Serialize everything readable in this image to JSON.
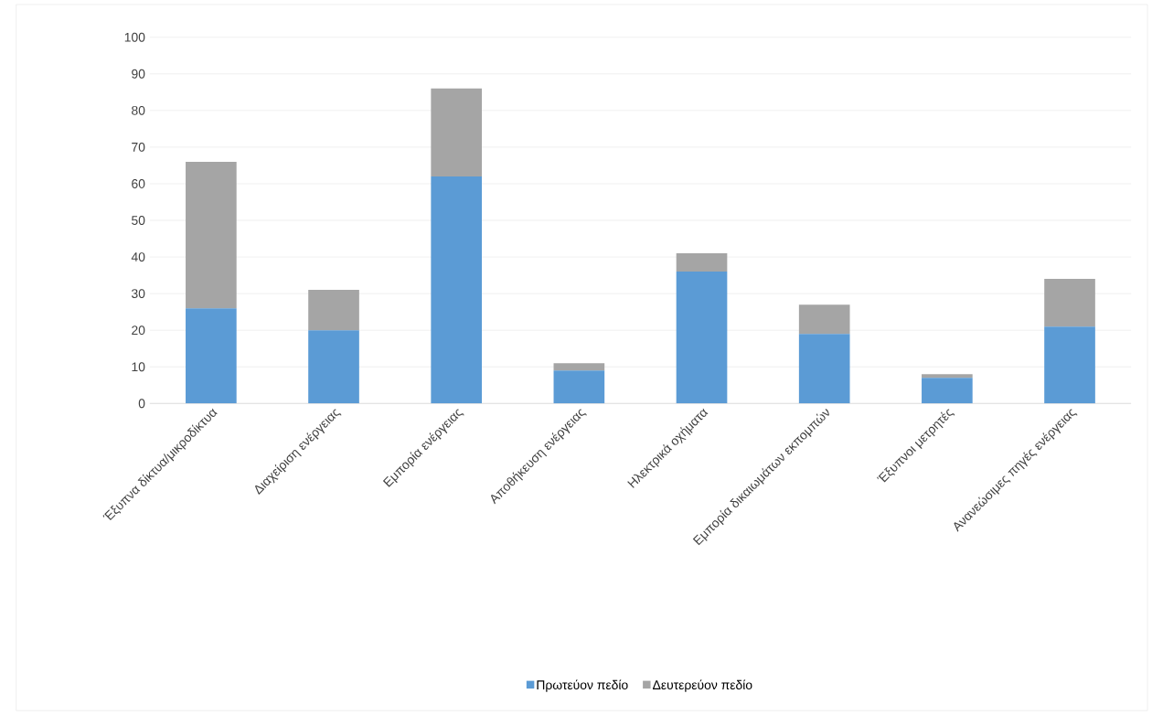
{
  "chart_data": {
    "type": "bar",
    "stacked": true,
    "categories": [
      "Έξυπνα δίκτυα/μικροδίκτυα",
      "Διαχείριση ενέργειας",
      "Εμπορία ενέργειας",
      "Αποθήκευση ενέργειας",
      "Ηλεκτρικά οχήματα",
      "Εμπορία δικαιωμάτων εκπομπών",
      "Έξυπνοι μετρητές",
      "Ανανεώσιμες πηγές ενέργειας"
    ],
    "series": [
      {
        "name": "Πρωτεύον πεδίο",
        "color": "#5b9bd5",
        "values": [
          26,
          20,
          62,
          9,
          36,
          19,
          7,
          21
        ]
      },
      {
        "name": "Δευτερεύον πεδίο",
        "color": "#a5a5a5",
        "values": [
          40,
          11,
          24,
          2,
          5,
          8,
          1,
          13
        ]
      }
    ],
    "ylim": [
      0,
      100
    ],
    "yticks": [
      0,
      10,
      20,
      30,
      40,
      50,
      60,
      70,
      80,
      90,
      100
    ],
    "grid": "y",
    "legend": "bottom"
  }
}
